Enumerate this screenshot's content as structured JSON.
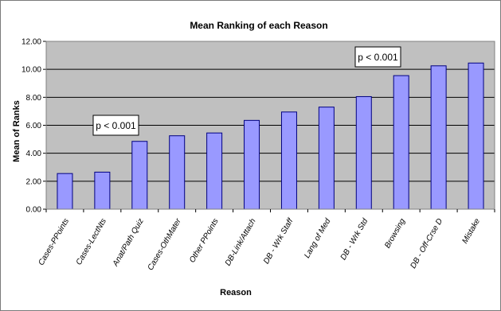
{
  "chart_data": {
    "type": "bar",
    "title": "Mean Ranking of each Reason",
    "xlabel": "Reason",
    "ylabel": "Mean of Ranks",
    "ylim": [
      0,
      12
    ],
    "yticks": [
      "0.00",
      "2.00",
      "4.00",
      "6.00",
      "8.00",
      "10.00",
      "12.00"
    ],
    "grid": true,
    "categories": [
      "Cases-PPoints",
      "Cases-LectNts",
      "Anat/Path Quiz",
      "Cases-OthMater",
      "Other PPoints",
      "DB-Link/Attach",
      "DB - Wrk Staff",
      "Lang of Med",
      "DB - Wrk Std",
      "Browsing",
      "DB - Off-Crse D",
      "Mistake"
    ],
    "values": [
      2.55,
      2.65,
      4.85,
      5.25,
      5.45,
      6.35,
      6.95,
      7.3,
      8.05,
      9.55,
      10.25,
      10.45
    ],
    "annotations": [
      {
        "text": "p < 0.001",
        "near_category": "Cases-LectNts"
      },
      {
        "text": "p < 0.001",
        "near_category": "DB - Wrk Std"
      }
    ],
    "colors": {
      "bar_fill": "#9999ff",
      "bar_stroke": "#000080",
      "plot_background": "#c0c0c0",
      "gridline": "#000000"
    }
  }
}
